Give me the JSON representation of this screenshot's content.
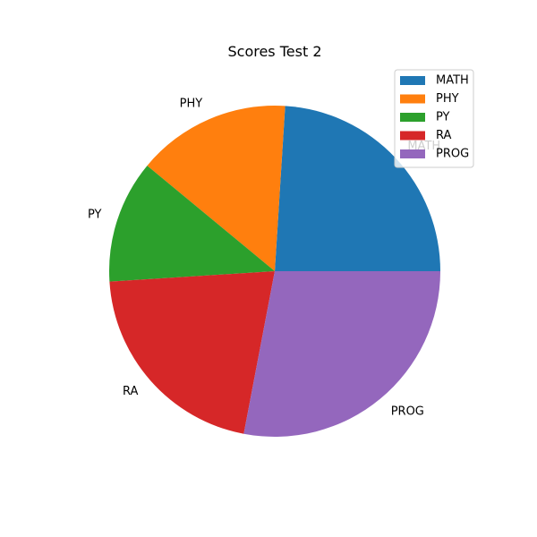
{
  "chart_data": {
    "type": "pie",
    "title": "Scores Test 2",
    "categories": [
      "MATH",
      "PHY",
      "PY",
      "RA",
      "PROG"
    ],
    "values": [
      24,
      15,
      12,
      21,
      28
    ],
    "colors": [
      "#1f77b4",
      "#ff7f0e",
      "#2ca02c",
      "#d62728",
      "#9467bd"
    ],
    "start_angle_deg": 0,
    "direction": "counterclockwise",
    "legend": {
      "position": "top-right",
      "entries": [
        "MATH",
        "PHY",
        "PY",
        "RA",
        "PROG"
      ]
    }
  }
}
